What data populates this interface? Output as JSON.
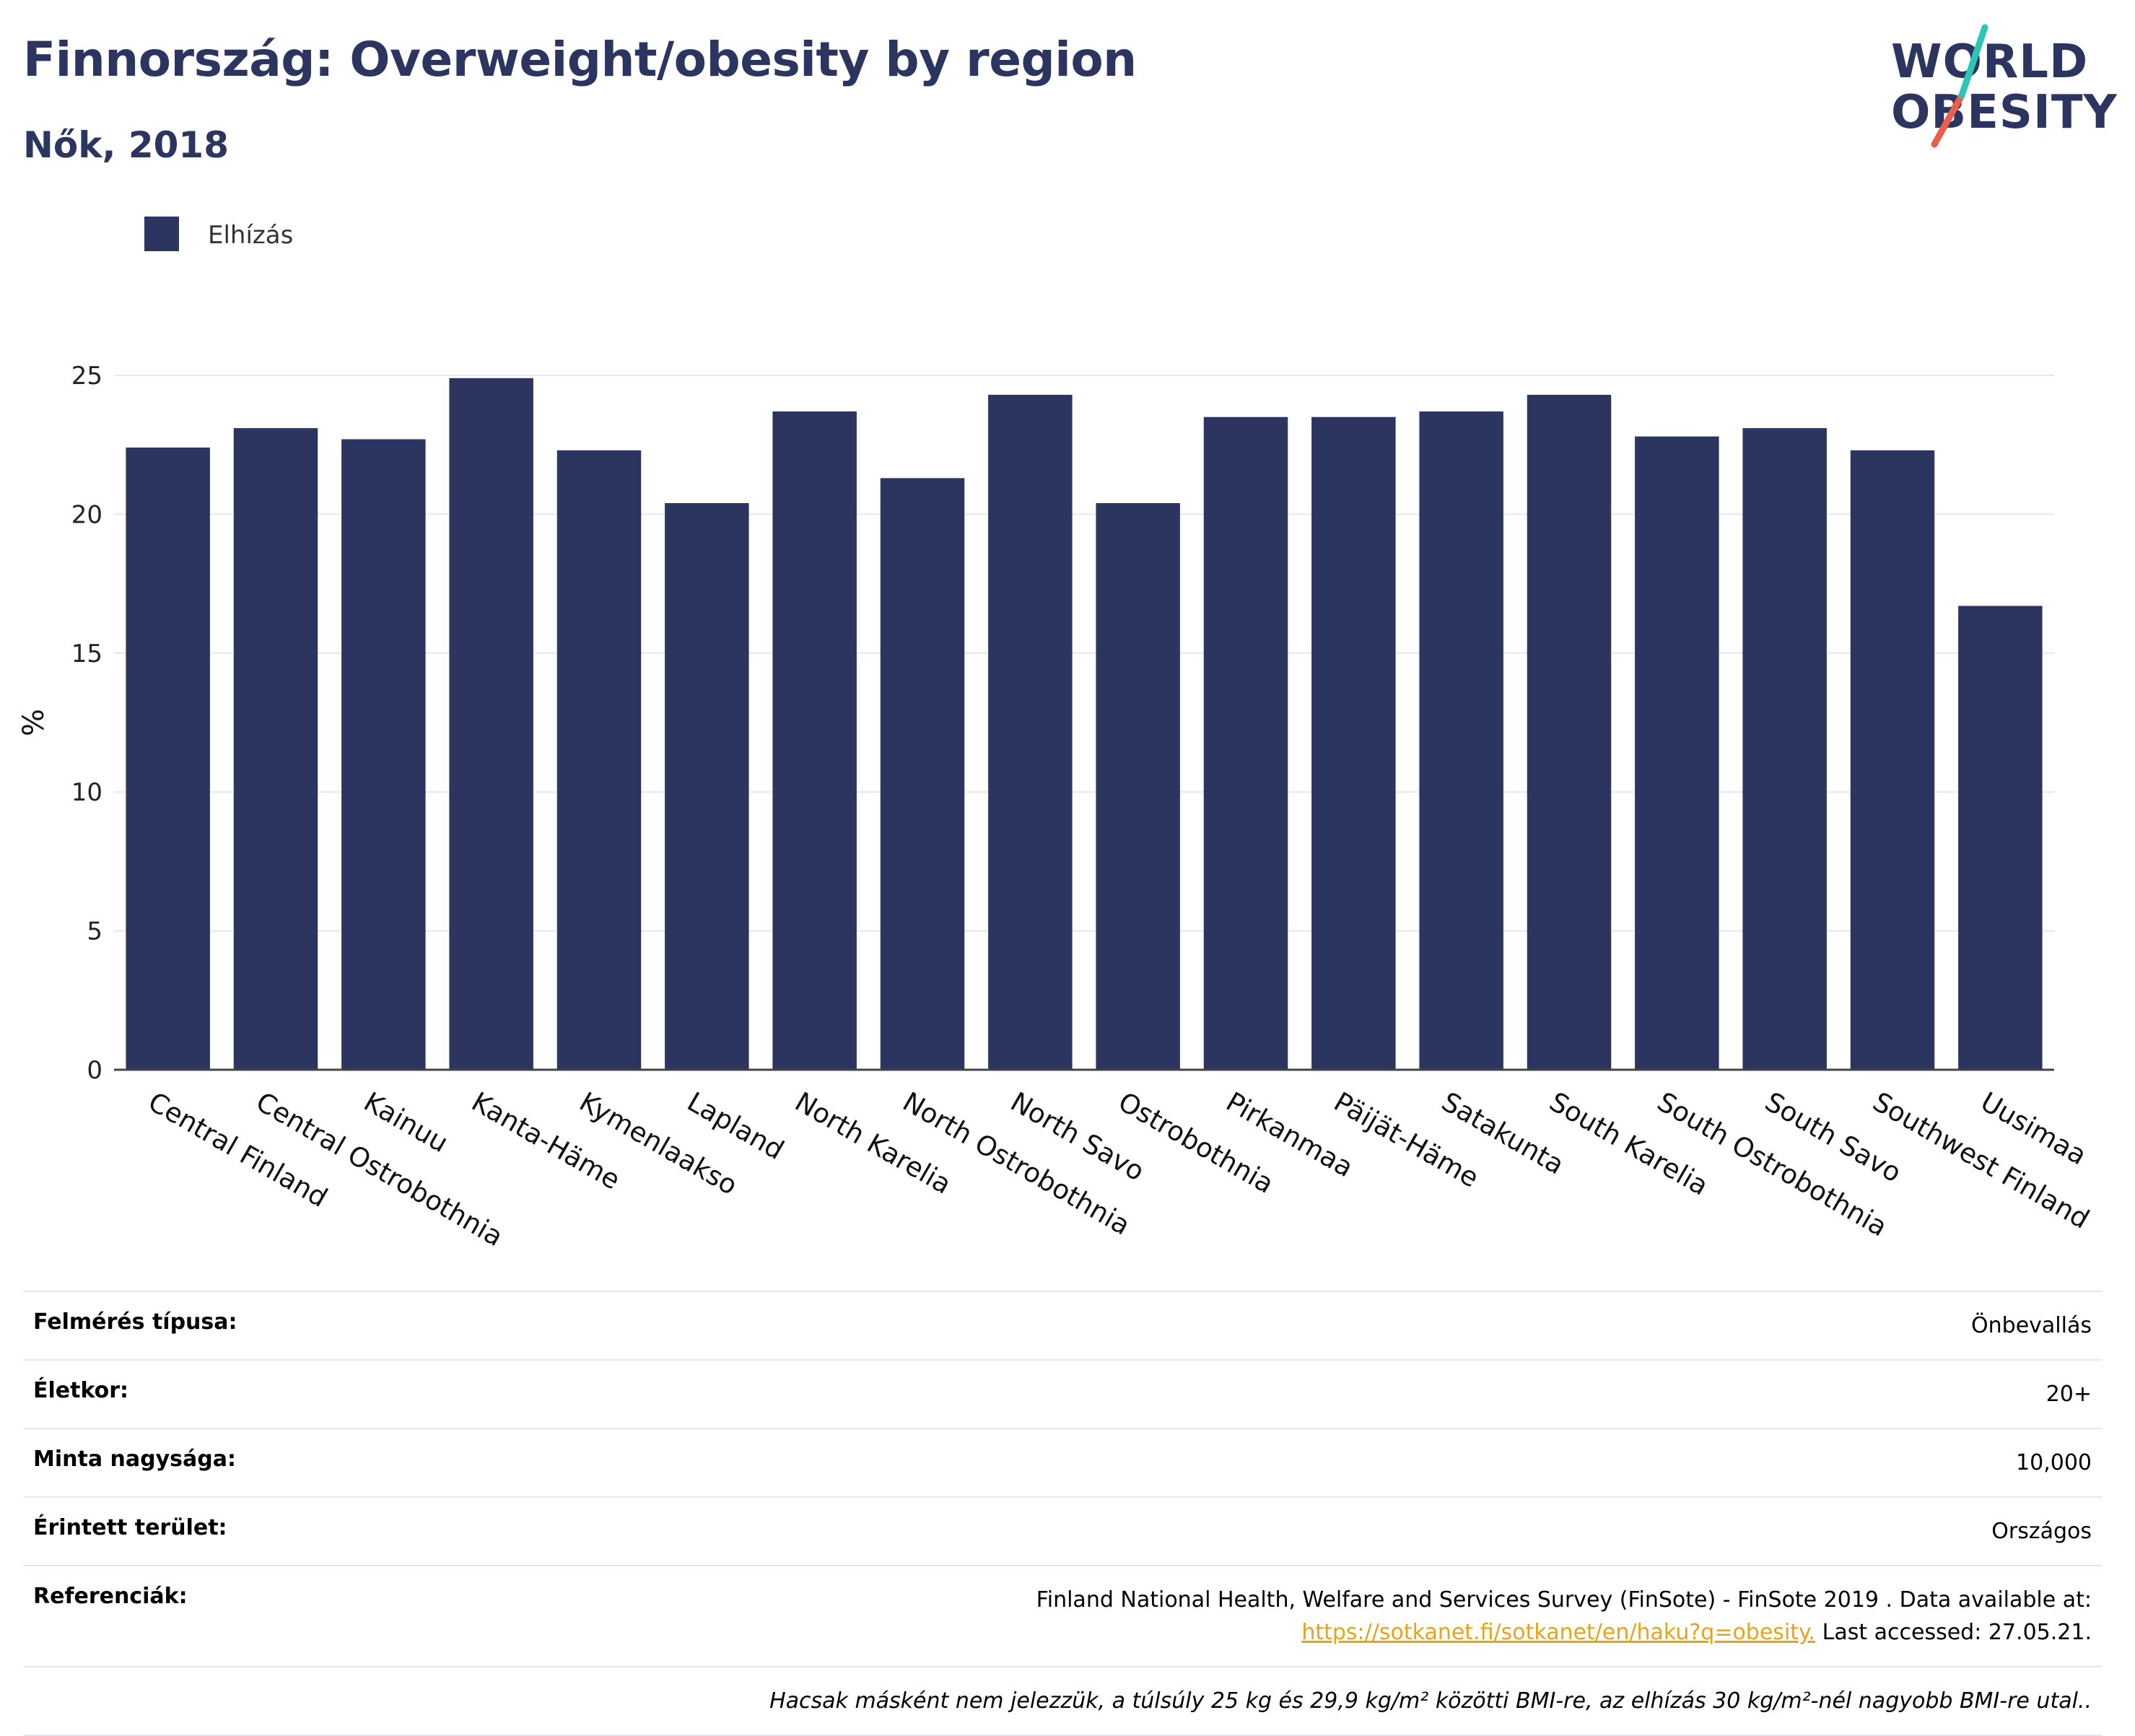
{
  "title": "Finnország: Overweight/obesity by region",
  "subtitle": "Nők, 2018",
  "logo": {
    "line1": "WORLD",
    "line2": "OBESITY"
  },
  "legend": [
    {
      "label": "Elhízás",
      "color": "#2b3560"
    }
  ],
  "colors": {
    "bar": "#2b3560",
    "text": "#2b3560",
    "link": "#e8a317",
    "logo_teal": "#2ec4b6",
    "logo_coral": "#e8604c"
  },
  "chart_data": {
    "type": "bar",
    "ylabel": "%",
    "ylim": [
      0,
      25
    ],
    "yticks": [
      0,
      5,
      10,
      15,
      20,
      25
    ],
    "grid": true,
    "legend_position": "top-left",
    "categories": [
      "Central Finland",
      "Central Ostrobothnia",
      "Kainuu",
      "Kanta-Häme",
      "Kymenlaakso",
      "Lapland",
      "North Karelia",
      "North Ostrobothnia",
      "North Savo",
      "Ostrobothnia",
      "Pirkanmaa",
      "Päijät-Häme",
      "Satakunta",
      "South Karelia",
      "South Ostrobothnia",
      "South Savo",
      "Southwest Finland",
      "Uusimaa"
    ],
    "series": [
      {
        "name": "Elhízás",
        "values": [
          22.4,
          23.1,
          22.7,
          24.9,
          22.3,
          20.4,
          23.7,
          21.3,
          24.3,
          20.4,
          23.5,
          23.5,
          23.7,
          24.3,
          22.8,
          23.1,
          22.3,
          16.7
        ]
      }
    ]
  },
  "meta": [
    {
      "key": "Felmérés típusa:",
      "value": "Önbevallás"
    },
    {
      "key": "Életkor:",
      "value": "20+"
    },
    {
      "key": "Minta nagysága:",
      "value": "10,000"
    },
    {
      "key": "Érintett terület:",
      "value": "Országos"
    }
  ],
  "references": {
    "key": "Referenciák:",
    "text": "Finland National Health, Welfare and Services Survey (FinSote) - FinSote 2019 . Data available at:",
    "link": "https://sotkanet.fi/sotkanet/en/haku?q=obesity.",
    "accessed": "Last accessed: 27.05.21."
  },
  "footnote": "Hacsak másként nem jelezzük, a túlsúly 25 kg és 29,9 kg/m² közötti BMI-re, az elhízás 30 kg/m²-nél nagyobb BMI-re utal.."
}
